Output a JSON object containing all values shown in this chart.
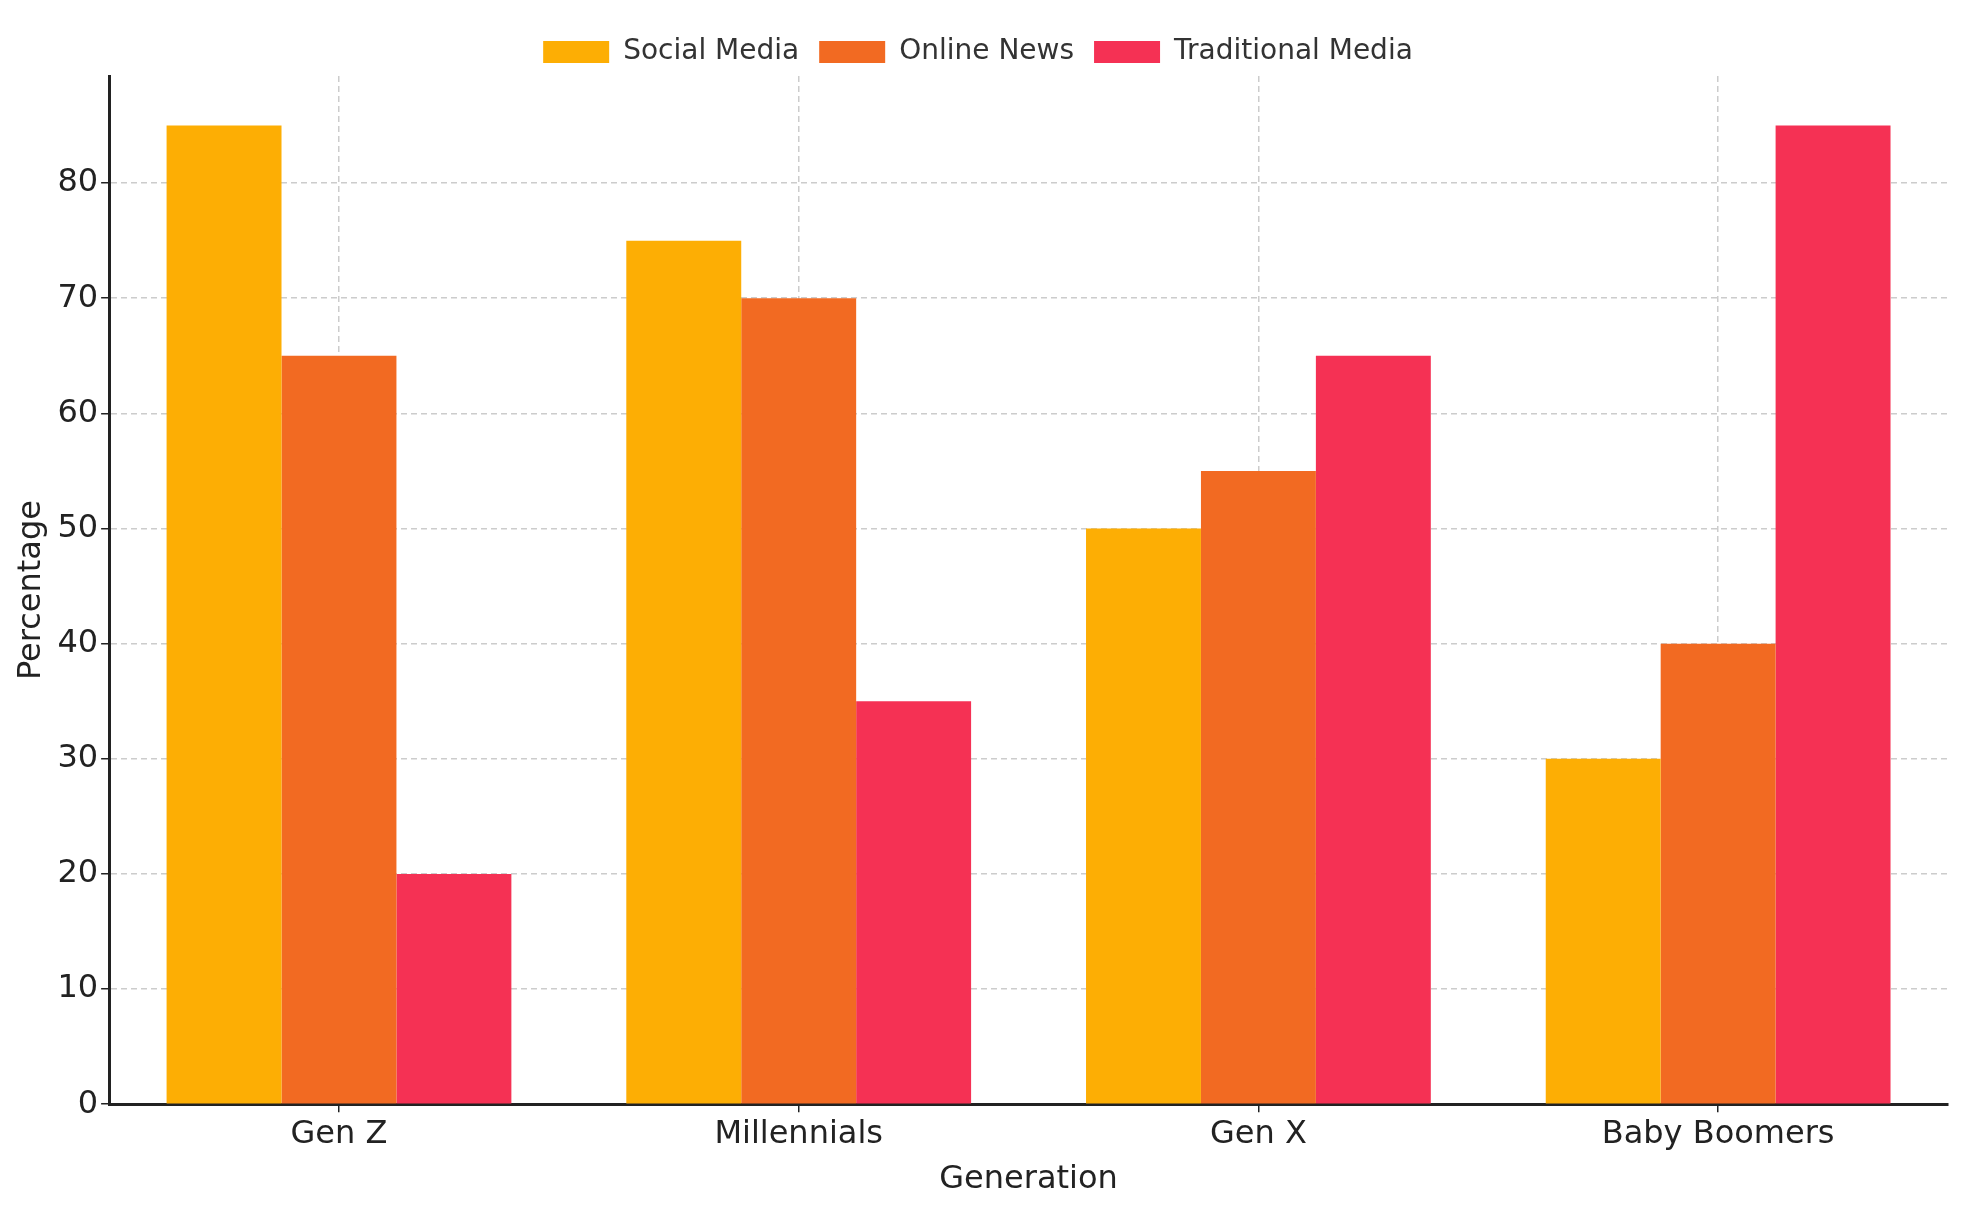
{
  "chart_data": {
    "type": "bar",
    "xlabel": "Generation",
    "ylabel": "Percentage",
    "categories": [
      "Gen Z",
      "Millennials",
      "Gen X",
      "Baby Boomers"
    ],
    "series": [
      {
        "name": "Social Media",
        "color": "#fdae04",
        "values": [
          85,
          75,
          50,
          30
        ]
      },
      {
        "name": "Online News",
        "color": "#f26a22",
        "values": [
          65,
          70,
          55,
          40
        ]
      },
      {
        "name": "Traditional Media",
        "color": "#f53154",
        "values": [
          20,
          35,
          65,
          85
        ]
      }
    ],
    "ylim": [
      0,
      89.3
    ],
    "yticks": [
      0,
      10,
      20,
      30,
      40,
      50,
      60,
      70,
      80
    ],
    "grid": true,
    "legend": "top"
  }
}
